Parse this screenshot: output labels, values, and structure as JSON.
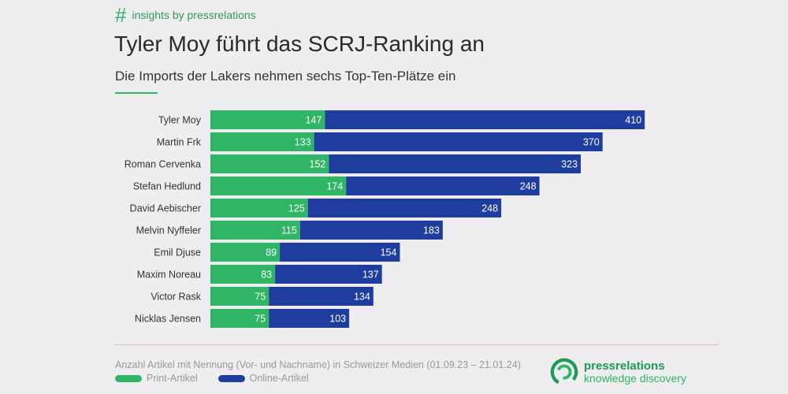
{
  "header": {
    "hash": "#",
    "tag": "insights by pressrelations",
    "title": "Tyler Moy führt das SCRJ-Ranking an",
    "subtitle": "Die Imports der Lakers nehmen sechs Top-Ten-Plätze ein"
  },
  "chart_data": {
    "type": "bar",
    "orientation": "horizontal",
    "stacked": true,
    "title": "Tyler Moy führt das SCRJ-Ranking an",
    "subtitle": "Die Imports der Lakers nehmen sechs Top-Ten-Plätze ein",
    "categories": [
      "Tyler Moy",
      "Martin Frk",
      "Roman Cervenka",
      "Stefan Hedlund",
      "David Aebischer",
      "Melvin Nyffeler",
      "Emil Djuse",
      "Maxim Noreau",
      "Victor Rask",
      "Nicklas Jensen"
    ],
    "series": [
      {
        "name": "Print-Artikel",
        "color": "#2fb565",
        "values": [
          147,
          133,
          152,
          174,
          125,
          115,
          89,
          83,
          75,
          75
        ]
      },
      {
        "name": "Online-Artikel",
        "color": "#1f3d9e",
        "values": [
          410,
          370,
          323,
          248,
          248,
          183,
          154,
          137,
          134,
          103
        ]
      }
    ],
    "grid": false,
    "legend_position": "bottom-left",
    "data_labels": true
  },
  "footer": {
    "note": "Anzahl Artikel mit Nennung (Vor- und Nachname) in Schweizer Medien (01.09.23 – 21.01.24)",
    "legend_print": "Print-Artikel",
    "legend_online": "Online-Artikel",
    "logo_name": "pressrelations",
    "logo_sub": "knowledge discovery"
  }
}
